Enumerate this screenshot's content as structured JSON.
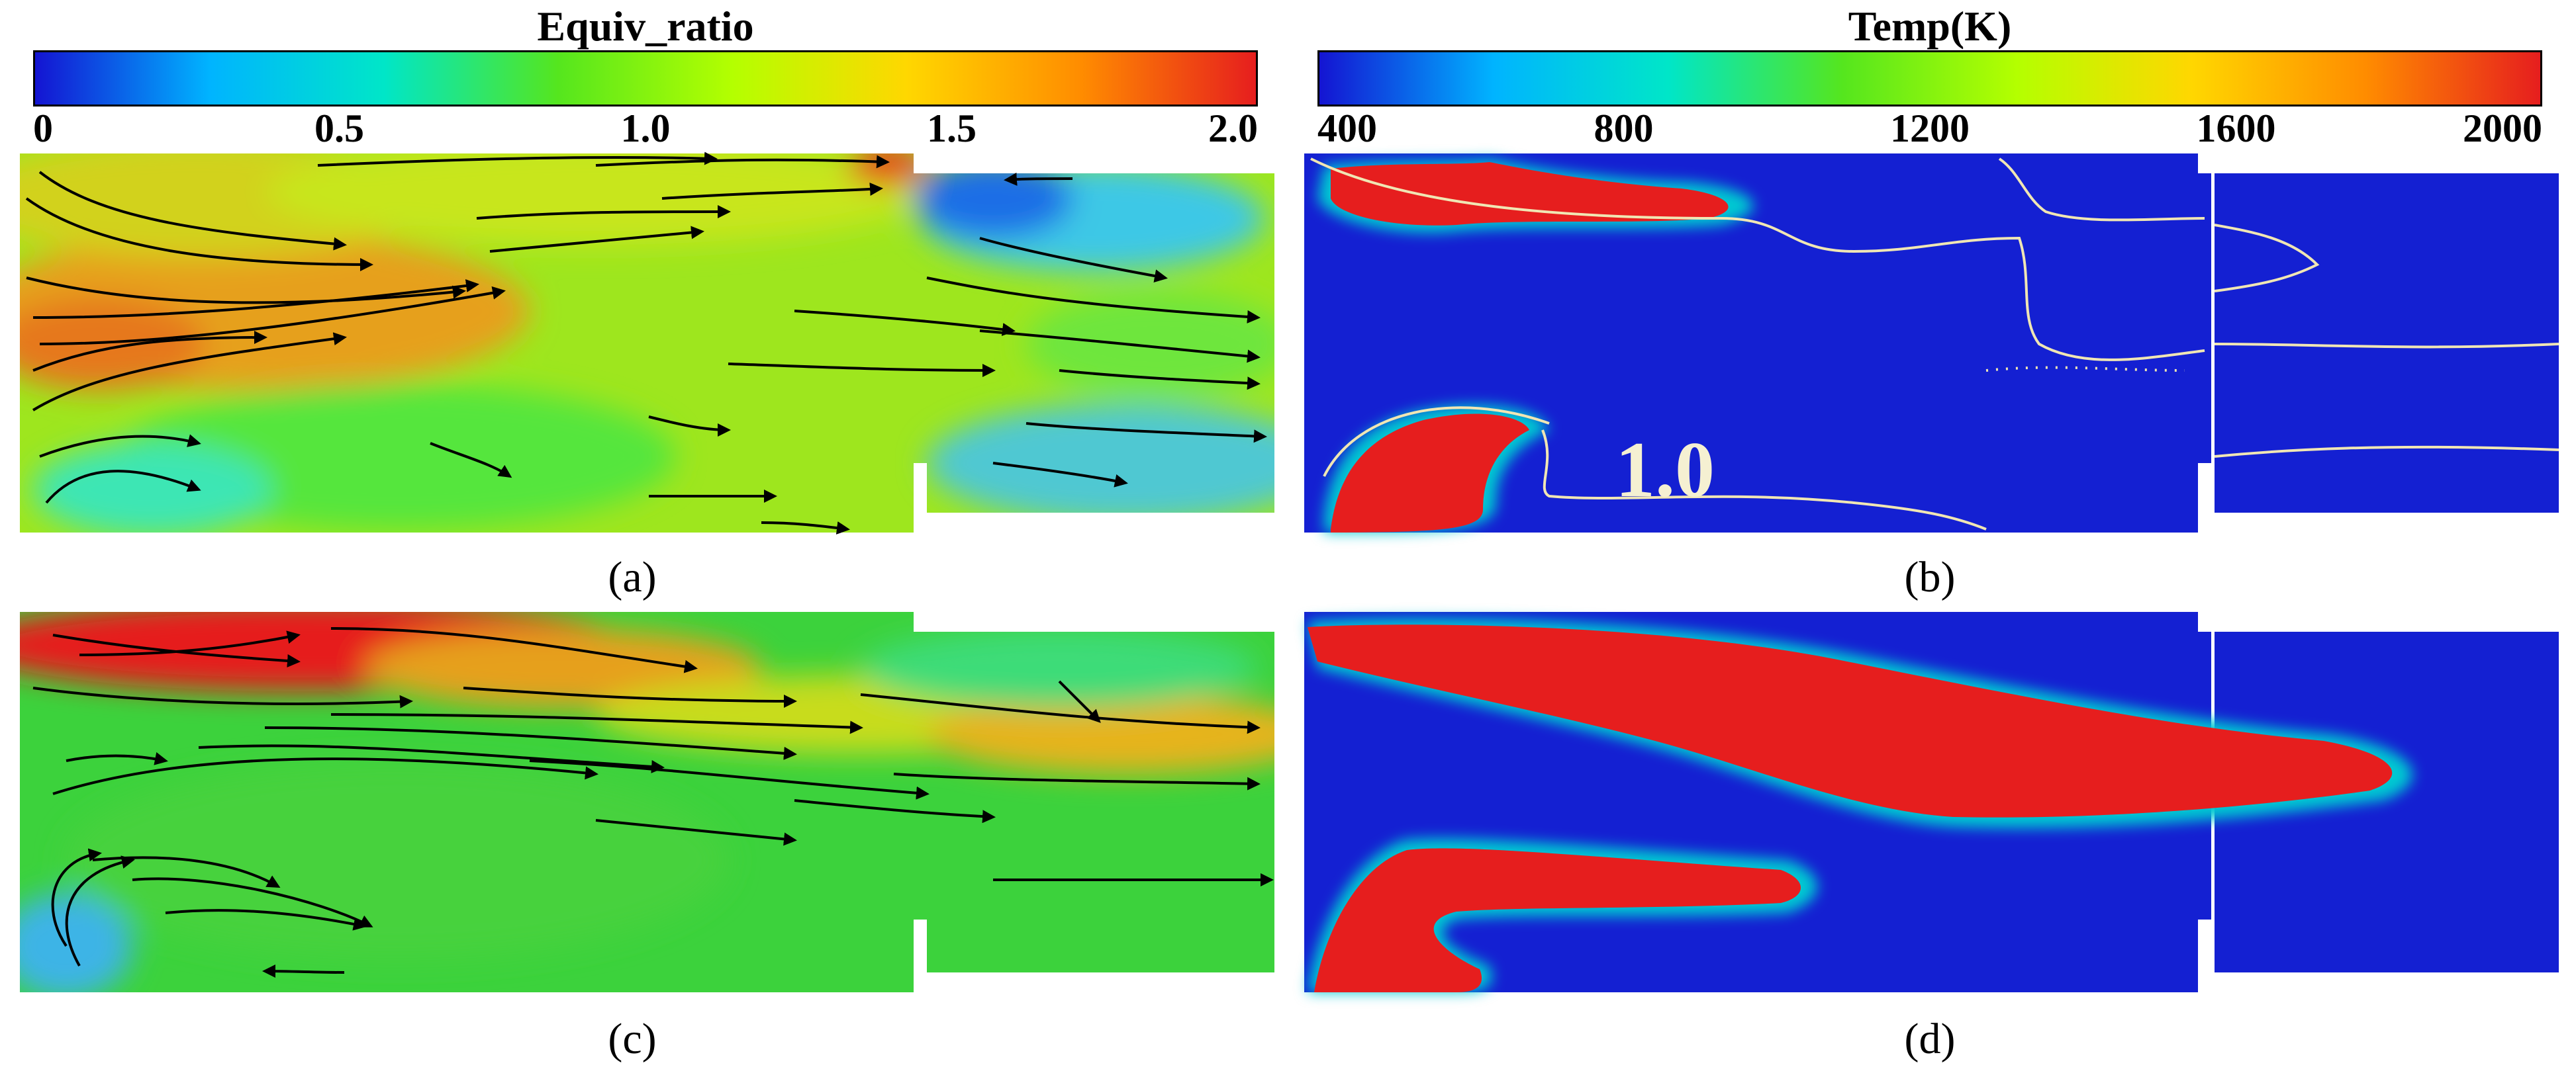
{
  "colorbars": {
    "equiv": {
      "title": "Equiv_ratio",
      "ticks": [
        "0",
        "0.5",
        "1.0",
        "1.5",
        "2.0"
      ],
      "colors": [
        "#1414d2",
        "#00b4ff",
        "#00e6c8",
        "#55e61e",
        "#b4ff00",
        "#ffd700",
        "#ff8c00",
        "#e61e1e"
      ]
    },
    "temp": {
      "title": "Temp(K)",
      "ticks": [
        "400",
        "800",
        "1200",
        "1600",
        "2000"
      ],
      "colors": [
        "#1414d2",
        "#00b4ff",
        "#00e6c8",
        "#55e61e",
        "#b4ff00",
        "#ffd700",
        "#ff8c00",
        "#e61e1e"
      ]
    }
  },
  "panels": {
    "a": {
      "caption": "(a)"
    },
    "b": {
      "caption": "(b)",
      "contour_label": "1.0"
    },
    "c": {
      "caption": "(c)"
    },
    "d": {
      "caption": "(d)"
    }
  }
}
